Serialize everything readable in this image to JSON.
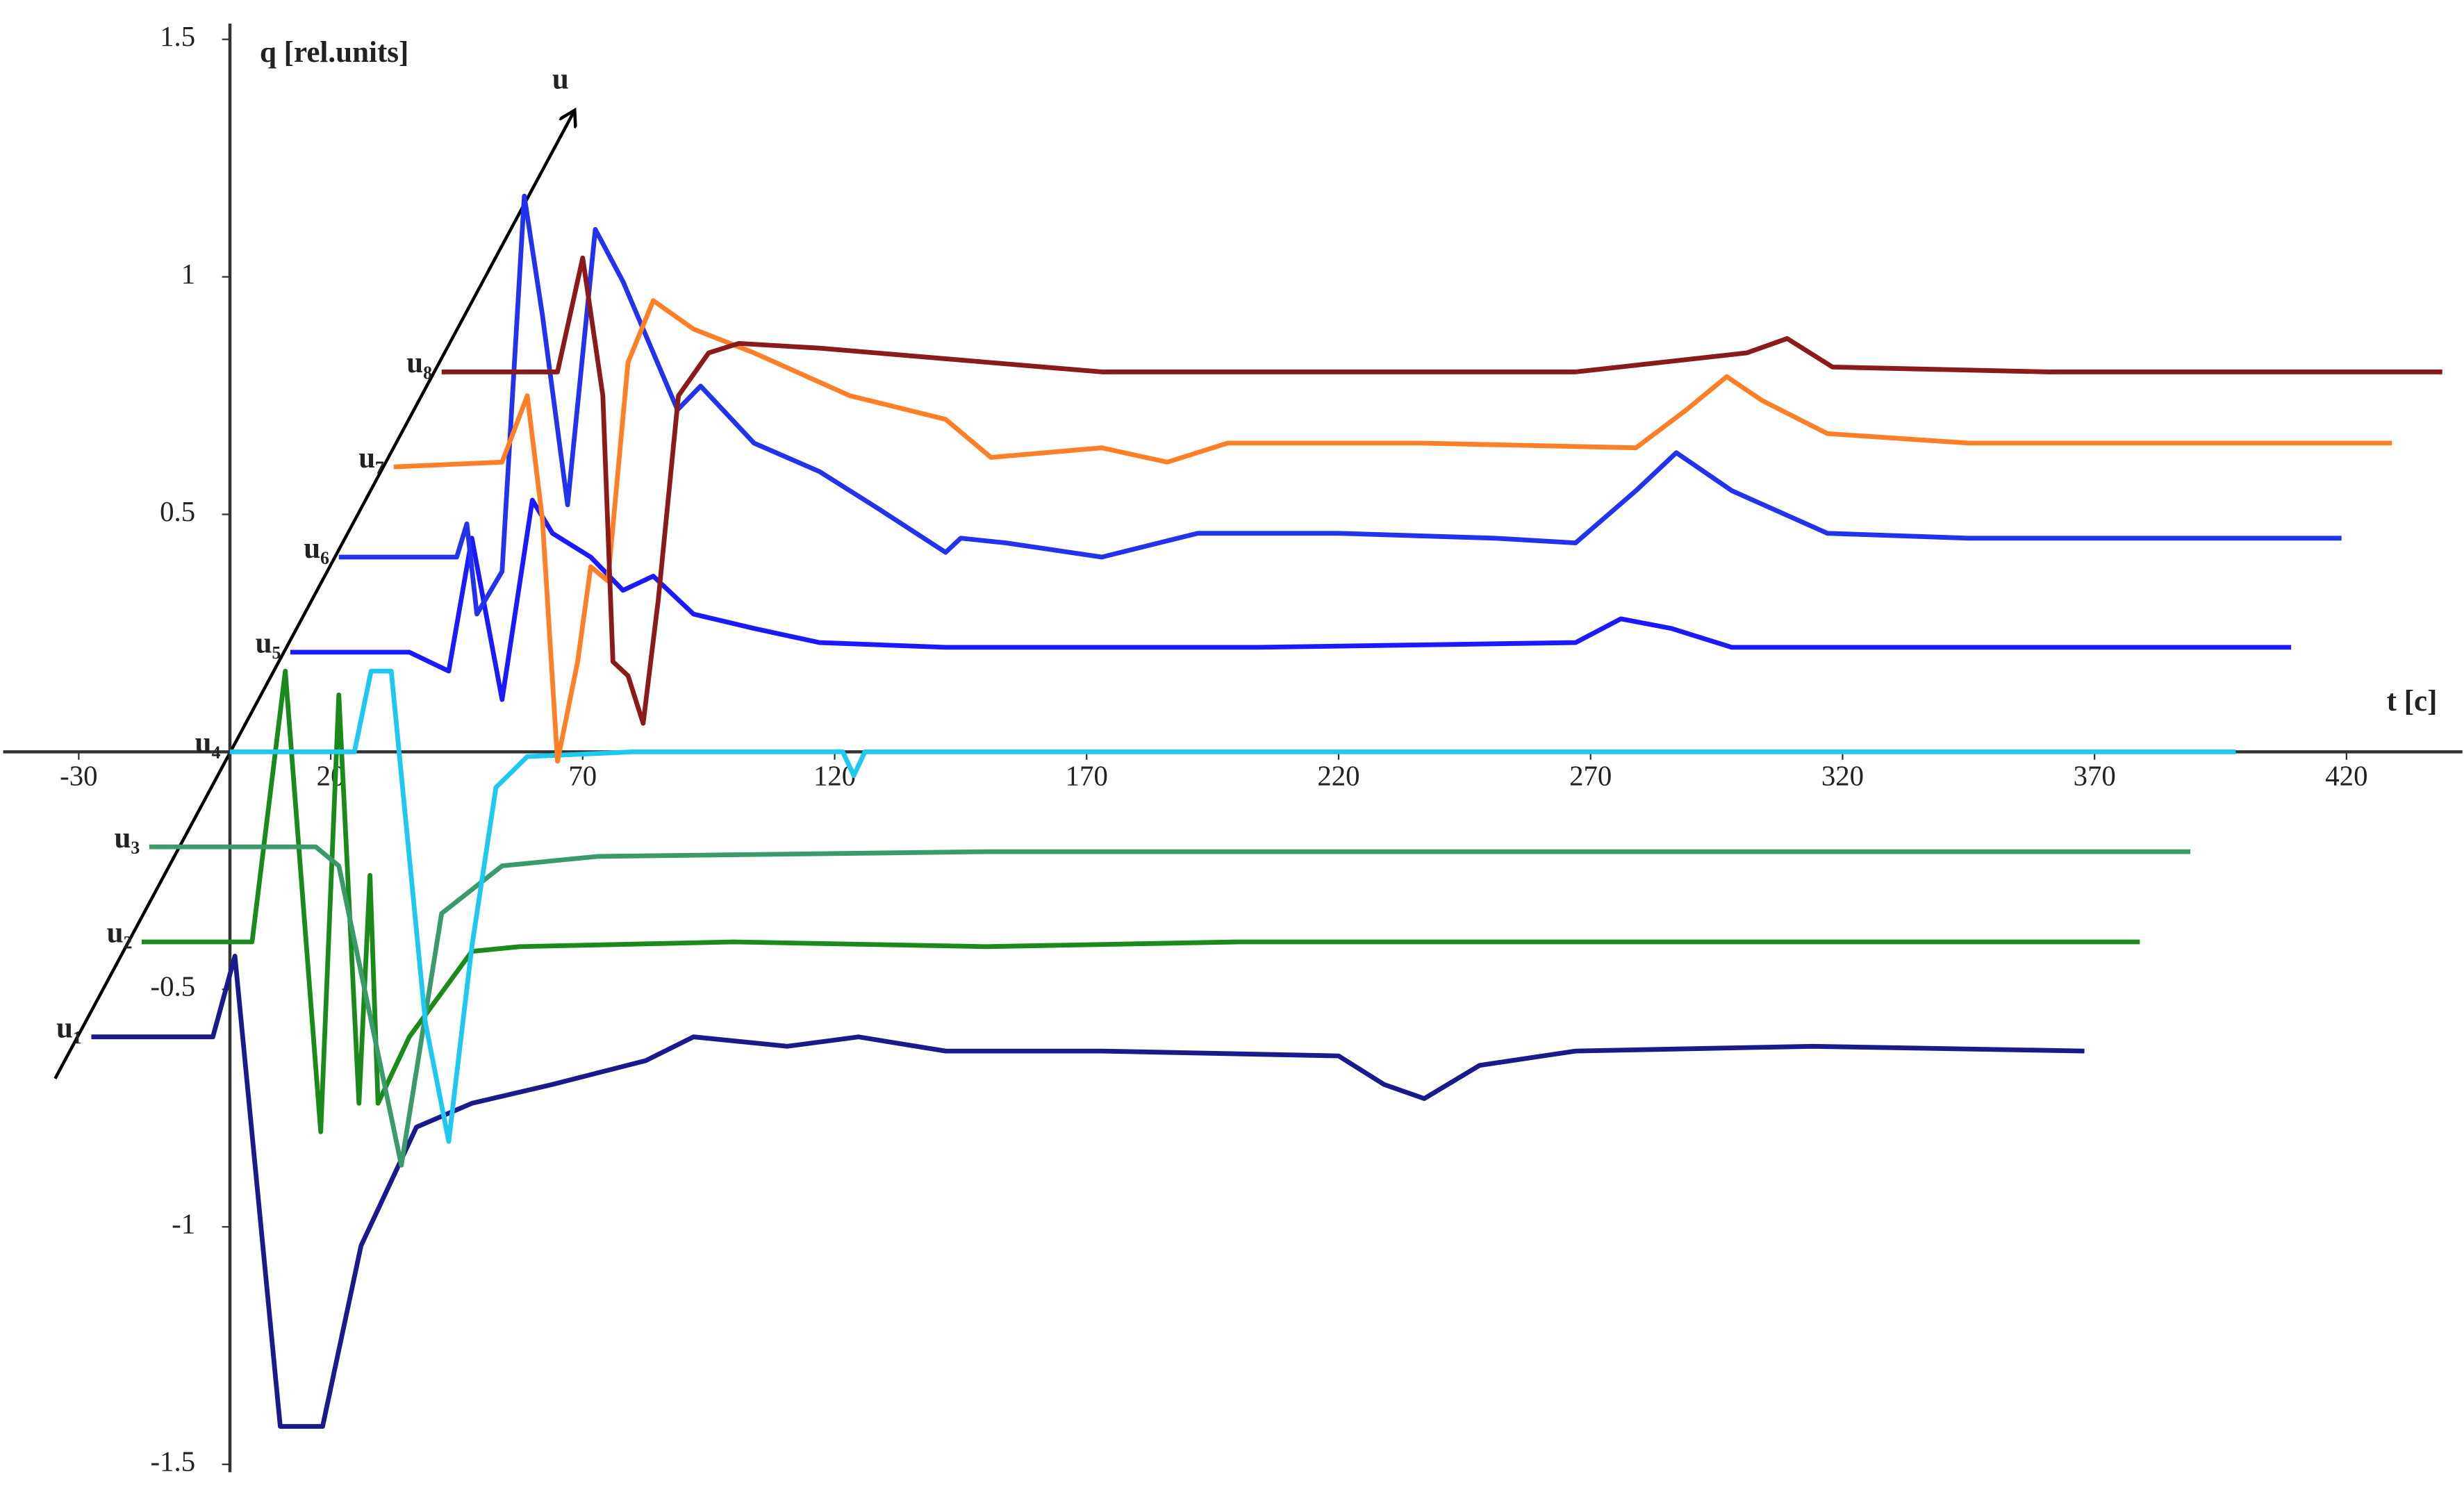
{
  "chart_data": {
    "type": "line",
    "y_label": "q [rel.units]",
    "x_label": "t [c]",
    "arrow_label": "u",
    "xlim": [
      -45,
      443
    ],
    "ylim": [
      -1.5,
      1.5
    ],
    "xticks": [
      -30,
      20,
      70,
      120,
      170,
      220,
      270,
      320,
      370,
      420
    ],
    "yticks": [
      -1.5,
      -1,
      -0.5,
      0.5,
      1,
      1.5
    ],
    "series": [
      {
        "name": "u₁",
        "color": "#1a1a8c",
        "x": [
          -27.5,
          -3.4,
          1,
          10,
          18.4,
          26,
          37,
          48,
          64,
          82.5,
          92,
          110.6,
          124.7,
          142,
          173,
          220,
          229,
          237,
          248,
          267,
          314,
          368
        ],
        "values": [
          -0.6,
          -0.6,
          -0.43,
          -1.42,
          -1.42,
          -1.04,
          -0.79,
          -0.74,
          -0.7,
          -0.65,
          -0.6,
          -0.62,
          -0.6,
          -0.63,
          -0.63,
          -0.64,
          -0.7,
          -0.73,
          -0.66,
          -0.63,
          -0.62,
          -0.63
        ]
      },
      {
        "name": "u₂",
        "color": "#1a8a1a",
        "x": [
          -17.5,
          4.4,
          11,
          18,
          21.6,
          25.6,
          27.8,
          29.4,
          35.6,
          48,
          57.5,
          100,
          150,
          200,
          250,
          300,
          379
        ],
        "values": [
          -0.4,
          -0.4,
          0.17,
          -0.8,
          0.12,
          -0.74,
          -0.26,
          -0.74,
          -0.6,
          -0.42,
          -0.41,
          -0.4,
          -0.41,
          -0.4,
          -0.4,
          -0.4,
          -0.4
        ]
      },
      {
        "name": "u₃",
        "color": "#3a9a6a",
        "x": [
          -16,
          17,
          21.6,
          34,
          42,
          54,
          73,
          150,
          250,
          389
        ],
        "values": [
          -0.2,
          -0.2,
          -0.24,
          -0.87,
          -0.34,
          -0.24,
          -0.22,
          -0.21,
          -0.21,
          -0.21
        ]
      },
      {
        "name": "u₄",
        "color": "#1ec8f0",
        "x": [
          0,
          24.7,
          28,
          32,
          38.8,
          43.4,
          48,
          52.8,
          59,
          80,
          121.6,
          123.8,
          126,
          200,
          300,
          398
        ],
        "values": [
          0,
          0,
          0.17,
          0.17,
          -0.57,
          -0.82,
          -0.41,
          -0.075,
          -0.01,
          0,
          0,
          -0.05,
          0,
          0,
          0,
          0
        ]
      },
      {
        "name": "u₅",
        "color": "#1a1aff",
        "x": [
          12,
          35.6,
          43.4,
          48,
          54,
          60,
          64,
          71.6,
          78,
          84,
          92,
          104,
          117,
          142,
          204,
          267,
          276,
          286,
          298,
          409
        ],
        "values": [
          0.21,
          0.21,
          0.17,
          0.45,
          0.11,
          0.53,
          0.46,
          0.41,
          0.34,
          0.37,
          0.29,
          0.26,
          0.23,
          0.22,
          0.22,
          0.23,
          0.28,
          0.26,
          0.22,
          0.22
        ]
      },
      {
        "name": "u₆",
        "color": "#2233ee",
        "x": [
          21.6,
          45,
          47,
          49,
          54,
          58.4,
          62,
          67,
          72.5,
          78,
          88.8,
          93.4,
          104,
          117,
          129,
          142,
          145,
          154,
          173,
          192,
          220,
          251,
          267,
          279,
          287,
          298,
          317,
          345,
          419
        ],
        "values": [
          0.41,
          0.41,
          0.48,
          0.29,
          0.38,
          1.17,
          0.92,
          0.52,
          1.1,
          0.99,
          0.72,
          0.77,
          0.65,
          0.59,
          0.51,
          0.42,
          0.45,
          0.44,
          0.41,
          0.46,
          0.46,
          0.45,
          0.44,
          0.55,
          0.63,
          0.55,
          0.46,
          0.45,
          0.45
        ]
      },
      {
        "name": "u₇",
        "color": "#ff7f27",
        "x": [
          32.5,
          54,
          59,
          62,
          65,
          69,
          71.6,
          75,
          79,
          84,
          92,
          104,
          123,
          142,
          151,
          173,
          186,
          198,
          236,
          279,
          289,
          297,
          304,
          317,
          345,
          429
        ],
        "values": [
          0.6,
          0.61,
          0.75,
          0.49,
          -0.02,
          0.19,
          0.39,
          0.36,
          0.82,
          0.95,
          0.89,
          0.84,
          0.75,
          0.7,
          0.62,
          0.64,
          0.61,
          0.65,
          0.65,
          0.64,
          0.72,
          0.79,
          0.74,
          0.67,
          0.65,
          0.65
        ]
      },
      {
        "name": "u₈",
        "color": "#8b1a1a",
        "x": [
          42,
          65,
          70,
          74,
          76,
          79,
          82,
          85,
          89,
          95,
          101,
          117,
          173,
          267,
          301,
          309,
          318,
          361,
          439
        ],
        "values": [
          0.8,
          0.8,
          1.04,
          0.75,
          0.19,
          0.16,
          0.06,
          0.32,
          0.75,
          0.84,
          0.86,
          0.85,
          0.8,
          0.8,
          0.84,
          0.87,
          0.81,
          0.8,
          0.8
        ]
      }
    ]
  }
}
